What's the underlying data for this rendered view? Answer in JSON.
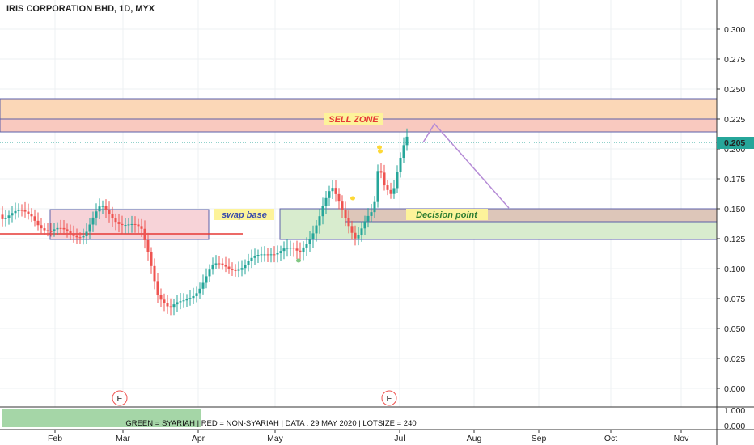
{
  "chart_data": {
    "type": "candlestick",
    "title": "IRIS CORPORATION BHD, 1D, MYX",
    "y_range": [
      0.0,
      0.325
    ],
    "y_ticks": [
      "0.000",
      "0.025",
      "0.050",
      "0.075",
      "0.100",
      "0.125",
      "0.150",
      "0.175",
      "0.200",
      "0.225",
      "0.250",
      "0.275",
      "0.300"
    ],
    "x_ticks": [
      "Feb",
      "Mar",
      "Apr",
      "May",
      "Jul",
      "Aug",
      "Sep",
      "Oct",
      "Nov"
    ],
    "last_price": "0.205",
    "colors": {
      "up": "#26a69a",
      "down": "#ef5350",
      "grid": "#eef0f3",
      "axis": "#333333"
    },
    "series": {
      "dates": [
        "2020-01-13",
        "2020-02-03",
        "2020-02-24",
        "2020-03-16",
        "2020-04-06",
        "2020-04-27",
        "2020-05-18",
        "2020-06-08",
        "2020-06-29",
        "2020-07-06"
      ],
      "close": [
        0.145,
        0.13,
        0.15,
        0.065,
        0.1,
        0.105,
        0.155,
        0.13,
        0.17,
        0.205
      ]
    },
    "zones": [
      {
        "label": "SELL ZONE",
        "top": 0.242,
        "bottom": 0.214,
        "color": "#fbd8b8"
      },
      {
        "label": "swap base",
        "top": 0.15,
        "bottom": 0.124,
        "color": "#f6d6da"
      },
      {
        "label": "Decision point",
        "top": 0.15,
        "bottom": 0.125,
        "color": "#d9ecd0"
      }
    ],
    "event_markers": [
      "E",
      "E"
    ],
    "footer_scale": [
      "1.000",
      "0.000"
    ]
  },
  "footer": {
    "text": "GREEN = SYARIAH   |  RED = NON-SYARIAH   |  DATA : 29 MAY 2020   |  LOTSIZE = 240"
  }
}
